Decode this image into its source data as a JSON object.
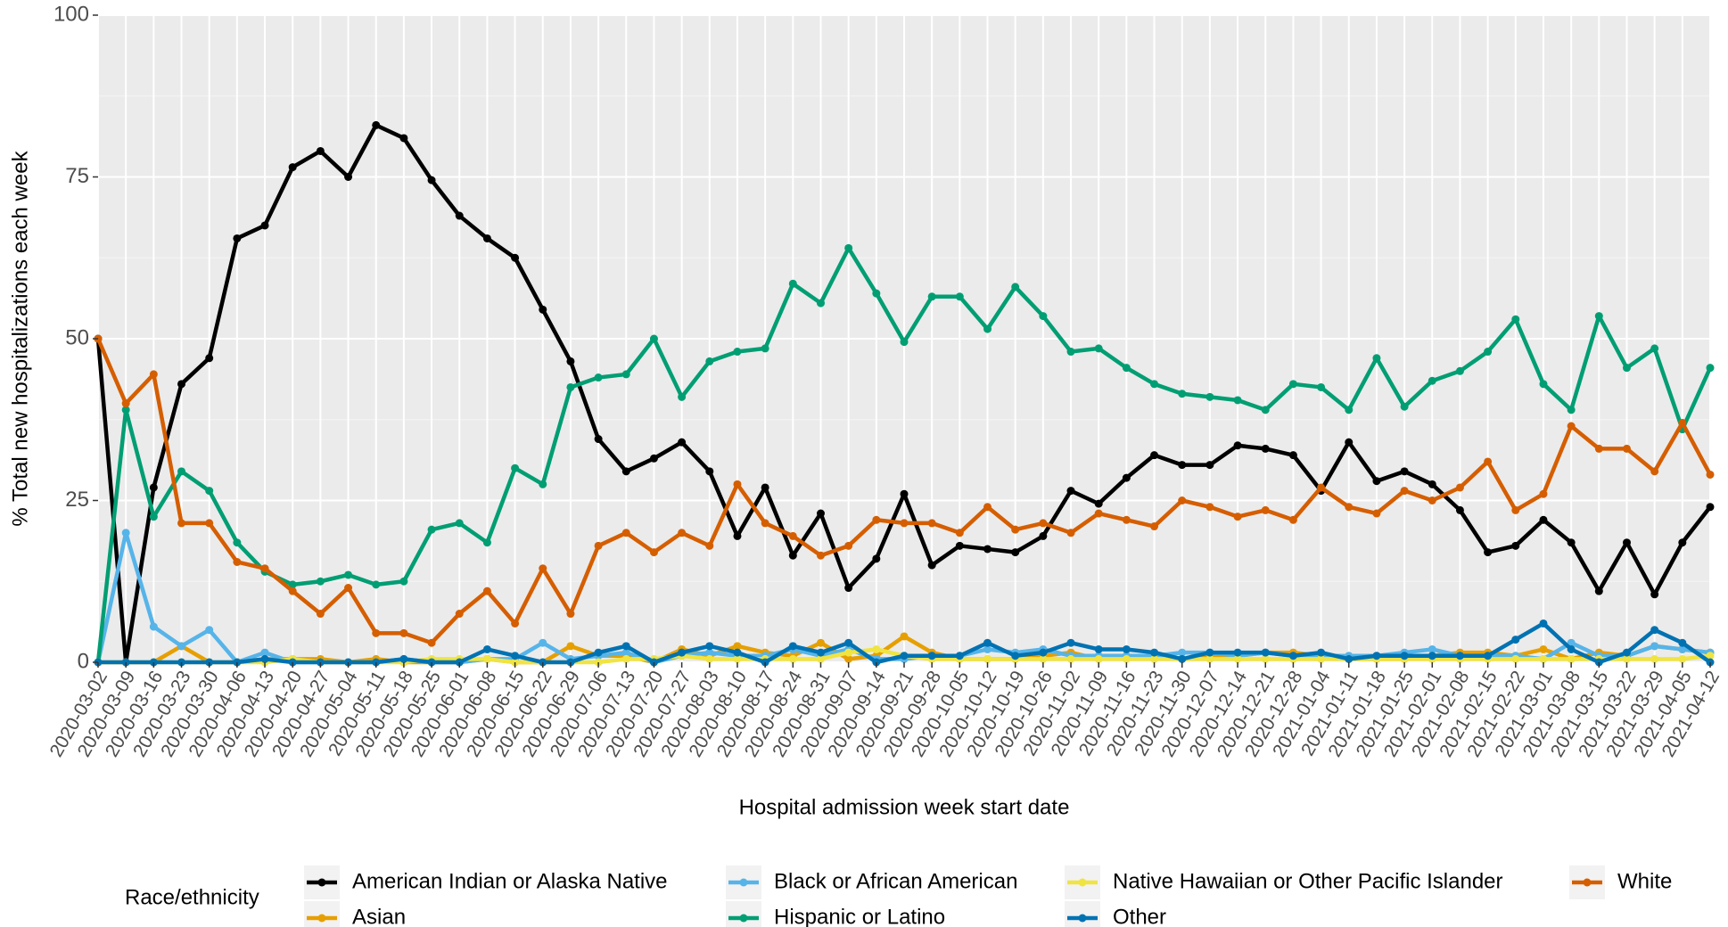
{
  "chart_data": {
    "type": "line",
    "x_label": "Hospital admission week start date",
    "y_label": "% Total new hospitalizations each week",
    "legend_title": "Race/ethnicity",
    "legend_position": "bottom",
    "grid": true,
    "categories": [
      "2020-03-02",
      "2020-03-09",
      "2020-03-16",
      "2020-03-23",
      "2020-03-30",
      "2020-04-06",
      "2020-04-13",
      "2020-04-20",
      "2020-04-27",
      "2020-05-04",
      "2020-05-11",
      "2020-05-18",
      "2020-05-25",
      "2020-06-01",
      "2020-06-08",
      "2020-06-15",
      "2020-06-22",
      "2020-06-29",
      "2020-07-06",
      "2020-07-13",
      "2020-07-20",
      "2020-07-27",
      "2020-08-03",
      "2020-08-10",
      "2020-08-17",
      "2020-08-24",
      "2020-08-31",
      "2020-09-07",
      "2020-09-14",
      "2020-09-21",
      "2020-09-28",
      "2020-10-05",
      "2020-10-12",
      "2020-10-19",
      "2020-10-26",
      "2020-11-02",
      "2020-11-09",
      "2020-11-16",
      "2020-11-23",
      "2020-11-30",
      "2020-12-07",
      "2020-12-14",
      "2020-12-21",
      "2020-12-28",
      "2021-01-04",
      "2021-01-11",
      "2021-01-18",
      "2021-01-25",
      "2021-02-01",
      "2021-02-08",
      "2021-02-15",
      "2021-02-22",
      "2021-03-01",
      "2021-03-08",
      "2021-03-15",
      "2021-03-22",
      "2021-03-29",
      "2021-04-05",
      "2021-04-12"
    ],
    "ylim": [
      0,
      100
    ],
    "yticks": [
      0,
      25,
      50,
      75,
      100
    ],
    "series": [
      {
        "name": "American Indian or Alaska Native",
        "color": "#000000",
        "values": [
          50,
          0,
          27,
          43,
          47,
          65.5,
          67.5,
          76.5,
          79,
          75,
          83,
          81,
          74.5,
          69,
          65.5,
          62.5,
          54.5,
          46.5,
          34.5,
          29.5,
          31.5,
          34,
          29.5,
          19.5,
          27,
          16.5,
          23,
          11.5,
          16,
          26,
          15,
          18,
          17.5,
          17,
          19.5,
          26.5,
          24.5,
          28.5,
          32,
          30.5,
          30.5,
          33.5,
          33,
          32,
          26.5,
          34,
          28,
          29.5,
          27.5,
          23.5,
          17,
          18,
          22,
          18.5,
          11,
          18.5,
          10.5,
          18.5,
          24
        ]
      },
      {
        "name": "Asian",
        "color": "#E69F00",
        "values": [
          0,
          0,
          0,
          2.5,
          0,
          0,
          0.5,
          0.5,
          0.5,
          0,
          0.5,
          0,
          0,
          0,
          0.5,
          0,
          0,
          2.5,
          1,
          1,
          0,
          2,
          1,
          2.5,
          1.5,
          1,
          3,
          0.5,
          1,
          4,
          1.5,
          0.5,
          0.5,
          0.5,
          1,
          1.5,
          0.5,
          1,
          1,
          0.5,
          1,
          1,
          1.5,
          1.5,
          1,
          0.5,
          0.5,
          0.5,
          1,
          1.5,
          1.5,
          1,
          2,
          0.5,
          1.5,
          1,
          2.5,
          2,
          1.5
        ]
      },
      {
        "name": "Black or African American",
        "color": "#56B4E9",
        "values": [
          0,
          20,
          5.5,
          2.5,
          5,
          0,
          1.5,
          0,
          0,
          0,
          0,
          0.5,
          0,
          0,
          0.5,
          0.5,
          3,
          0.5,
          1,
          1.5,
          0,
          1,
          1.5,
          1,
          1,
          2,
          1,
          2,
          0.5,
          0.5,
          1,
          1,
          2,
          1.5,
          2,
          1,
          1,
          1,
          1,
          1.5,
          1.5,
          1,
          1.5,
          1,
          1,
          1,
          1,
          1.5,
          2,
          1,
          1,
          1,
          0.5,
          3,
          1,
          1,
          2.5,
          2,
          1.5
        ]
      },
      {
        "name": "Hispanic or Latino",
        "color": "#009E73",
        "values": [
          0,
          39,
          22.5,
          29.5,
          26.5,
          18.5,
          14,
          12,
          12.5,
          13.5,
          12,
          12.5,
          20.5,
          21.5,
          18.5,
          30,
          27.5,
          42.5,
          44,
          44.5,
          50,
          41,
          46.5,
          48,
          48.5,
          58.5,
          55.5,
          64,
          57,
          49.5,
          56.5,
          56.5,
          51.5,
          58,
          53.5,
          48,
          48.5,
          45.5,
          43,
          41.5,
          41,
          40.5,
          39,
          43,
          42.5,
          39,
          47,
          39.5,
          43.5,
          45,
          48,
          53,
          43,
          39,
          53.5,
          45.5,
          48.5,
          36,
          45.5
        ]
      },
      {
        "name": "Native Hawaiian or Other Pacific Islander",
        "color": "#F0E442",
        "values": [
          0,
          0,
          0,
          0,
          0,
          0,
          0,
          0.5,
          0,
          0,
          0,
          0,
          0.5,
          0.5,
          0.5,
          0,
          0,
          0,
          0,
          0.5,
          0.5,
          1,
          0.5,
          0.5,
          0.5,
          0.5,
          0.5,
          1.5,
          2,
          1,
          0.5,
          0.5,
          0.5,
          0.5,
          0.5,
          0.5,
          0.5,
          0.5,
          0.5,
          0.5,
          0.5,
          0.5,
          0.5,
          0.5,
          0.5,
          0.5,
          0.5,
          0.5,
          0.5,
          0.5,
          0.5,
          0.5,
          0.5,
          0.5,
          0.5,
          0.5,
          0.5,
          0.5,
          1
        ]
      },
      {
        "name": "Other",
        "color": "#0072B2",
        "values": [
          0,
          0,
          0,
          0,
          0,
          0,
          0.5,
          0,
          0,
          0,
          0,
          0.5,
          0,
          0,
          2,
          1,
          0,
          0,
          1.5,
          2.5,
          0,
          1.5,
          2.5,
          1.5,
          0,
          2.5,
          1.5,
          3,
          0,
          1,
          1,
          1,
          3,
          1,
          1.5,
          3,
          2,
          2,
          1.5,
          0.5,
          1.5,
          1.5,
          1.5,
          1,
          1.5,
          0.5,
          1,
          1,
          1,
          1,
          1,
          3.5,
          6,
          2,
          0,
          1.5,
          5,
          3,
          0
        ]
      },
      {
        "name": "White",
        "color": "#D55E00",
        "values": [
          50,
          40,
          44.5,
          21.5,
          21.5,
          15.5,
          14.5,
          11,
          7.5,
          11.5,
          4.5,
          4.5,
          3,
          7.5,
          11,
          6,
          14.5,
          7.5,
          18,
          20,
          17,
          20,
          18,
          27.5,
          21.5,
          19.5,
          16.5,
          18,
          22,
          21.5,
          21.5,
          20,
          24,
          20.5,
          21.5,
          20,
          23,
          22,
          21,
          25,
          24,
          22.5,
          23.5,
          22,
          27,
          24,
          23,
          26.5,
          25,
          27,
          31,
          23.5,
          26,
          36.5,
          33,
          33,
          29.5,
          37,
          29
        ]
      }
    ]
  }
}
